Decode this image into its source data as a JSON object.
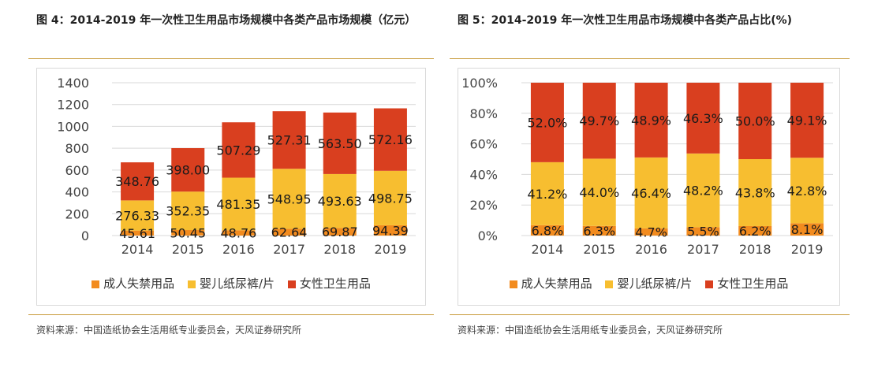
{
  "figure4": {
    "title": "图 4：2014-2019 年一次性卫生用品市场规模中各类产品市场规模（亿元）",
    "source": "资料来源：中国造纸协会生活用纸专业委员会，天风证券研究所"
  },
  "figure5": {
    "title": "图 5：2014-2019 年一次性卫生用品市场规模中各类产品占比(%)",
    "source": "资料来源：中国造纸协会生活用纸专业委员会，天风证券研究所"
  },
  "colors": {
    "adult": "#f28b1e",
    "baby": "#f7be30",
    "female": "#d93f1f",
    "rule": "#c89a3a"
  },
  "chart_data": [
    {
      "type": "bar",
      "stacked": true,
      "categories": [
        "2014",
        "2015",
        "2016",
        "2017",
        "2018",
        "2019"
      ],
      "series": [
        {
          "name": "成人失禁用品",
          "values": [
            45.61,
            50.45,
            48.76,
            62.64,
            69.87,
            94.39
          ]
        },
        {
          "name": "婴儿纸尿裤/片",
          "values": [
            276.33,
            352.35,
            481.35,
            548.95,
            493.63,
            498.75
          ]
        },
        {
          "name": "女性卫生用品",
          "values": [
            348.76,
            398.0,
            507.29,
            527.31,
            563.5,
            572.16
          ]
        }
      ],
      "data_labels": [
        [
          "45.61",
          "50.45",
          "48.76",
          "62.64",
          "69.87",
          "94.39"
        ],
        [
          "276.33",
          "352.35",
          "481.35",
          "548.95",
          "493.63",
          "498.75"
        ],
        [
          "348.76",
          "398.00",
          "507.29",
          "527.31",
          "563.50",
          "572.16"
        ]
      ],
      "ylim": [
        0,
        1400
      ],
      "yticks": [
        "0",
        "200",
        "400",
        "600",
        "800",
        "1000",
        "1200",
        "1400"
      ],
      "grid": true,
      "legend_position": "bottom"
    },
    {
      "type": "bar",
      "stacked": true,
      "percent": true,
      "categories": [
        "2014",
        "2015",
        "2016",
        "2017",
        "2018",
        "2019"
      ],
      "series": [
        {
          "name": "成人失禁用品",
          "values": [
            6.8,
            6.3,
            4.7,
            5.5,
            6.2,
            8.1
          ]
        },
        {
          "name": "婴儿纸尿裤/片",
          "values": [
            41.2,
            44.0,
            46.4,
            48.2,
            43.8,
            42.8
          ]
        },
        {
          "name": "女性卫生用品",
          "values": [
            52.0,
            49.7,
            48.9,
            46.3,
            50.0,
            49.1
          ]
        }
      ],
      "data_labels": [
        [
          "6.8%",
          "6.3%",
          "4.7%",
          "5.5%",
          "6.2%",
          "8.1%"
        ],
        [
          "41.2%",
          "44.0%",
          "46.4%",
          "48.2%",
          "43.8%",
          "42.8%"
        ],
        [
          "52.0%",
          "49.7%",
          "48.9%",
          "46.3%",
          "50.0%",
          "49.1%"
        ]
      ],
      "ylim": [
        0,
        100
      ],
      "yticks": [
        "0%",
        "20%",
        "40%",
        "60%",
        "80%",
        "100%"
      ],
      "grid": true,
      "legend_position": "bottom"
    }
  ]
}
